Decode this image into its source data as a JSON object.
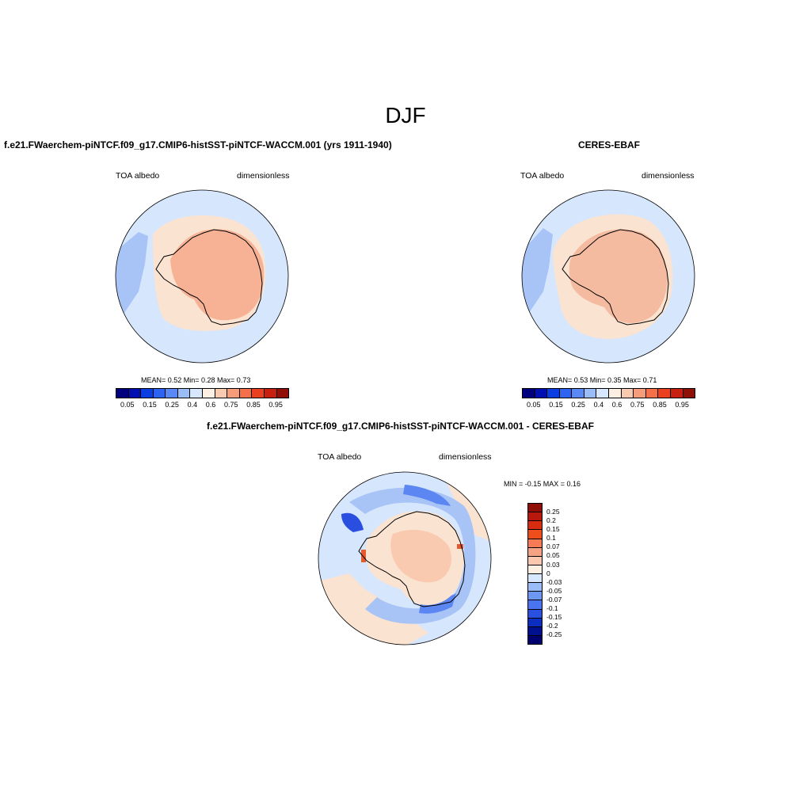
{
  "season_title": "DJF",
  "panels": {
    "model": {
      "title": "f.e21.FWaerchem-piNTCF.f09_g17.CMIP6-histSST-piNTCF-WACCM.001 (yrs 1911-1940)",
      "left_label": "TOA albedo",
      "right_label": "dimensionless",
      "stats": "MEAN=   0.52  Min=   0.28  Max=   0.73"
    },
    "obs": {
      "title": "CERES-EBAF",
      "left_label": "TOA albedo",
      "right_label": "dimensionless",
      "stats": "MEAN=   0.53  Min=   0.35  Max=   0.71"
    },
    "diff": {
      "title": "f.e21.FWaerchem-piNTCF.f09_g17.CMIP6-histSST-piNTCF-WACCM.001 - CERES-EBAF",
      "left_label": "TOA albedo",
      "right_label": "dimensionless",
      "stats": "MIN =  -0.15 MAX =   0.16"
    }
  },
  "colorbar_abs": {
    "colors": [
      "#00007f",
      "#0010b0",
      "#0b3ee0",
      "#2e62f0",
      "#5a89f5",
      "#9bbdf7",
      "#d7e7fd",
      "#fdf0e3",
      "#f9c9b0",
      "#f59d7a",
      "#f4704a",
      "#ea4020",
      "#c82010",
      "#901008"
    ],
    "tick_labels": [
      "0.05",
      "0.15",
      "0.25",
      "0.4",
      "0.6",
      "0.75",
      "0.85",
      "0.95"
    ]
  },
  "colorbar_diff": {
    "colors": [
      "#901008",
      "#b8190c",
      "#d62d10",
      "#ee4d1c",
      "#f47b55",
      "#f5a183",
      "#fac8ae",
      "#fdf0e3",
      "#d7e7fd",
      "#9bbdf7",
      "#6e97f3",
      "#4a74ef",
      "#2a50e0",
      "#0b2ec0",
      "#00108f",
      "#00006e"
    ],
    "tick_labels": [
      "0.25",
      "0.2",
      "0.15",
      "0.1",
      "0.07",
      "0.05",
      "0.03",
      "0",
      "-0.03",
      "-0.05",
      "-0.07",
      "-0.1",
      "-0.15",
      "-0.2",
      "-0.25"
    ]
  },
  "map_colors": {
    "ocean": "#d6e6fd",
    "ice_pale": "#fbe3d1",
    "continent": "#f7b295",
    "continent_obs": "#f5bba0",
    "blue_light": "#a8c4f7",
    "blue_mid": "#5c86f2",
    "blue_dark": "#2a4fe0",
    "red_small": "#e25a2e"
  }
}
